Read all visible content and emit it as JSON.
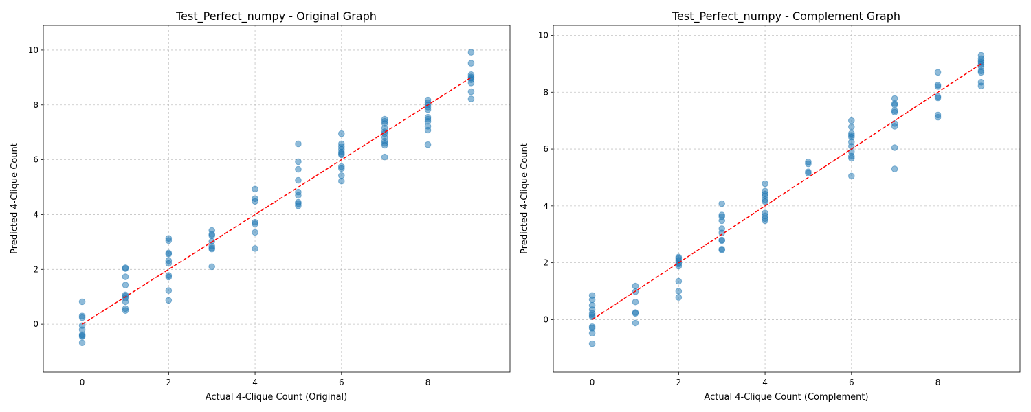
{
  "chart_data": [
    {
      "type": "scatter",
      "title": "Test_Perfect_numpy - Original Graph",
      "xlabel": "Actual 4-Clique Count (Original)",
      "ylabel": "Predicted 4-Clique Count",
      "xlim": [
        -0.9,
        9.9
      ],
      "ylim": [
        -1.75,
        10.9
      ],
      "xticks": [
        0,
        2,
        4,
        6,
        8
      ],
      "yticks": [
        0,
        2,
        4,
        6,
        8,
        10
      ],
      "grid": true,
      "colors": {
        "points": "#1f77b4",
        "reference_line": "#ff0000"
      },
      "reference_line": {
        "x": [
          0,
          9
        ],
        "y": [
          0,
          9
        ]
      },
      "series": [
        {
          "points": [
            [
              0,
              0.82
            ],
            [
              0,
              0.3
            ],
            [
              0,
              0.24
            ],
            [
              0,
              -0.05
            ],
            [
              0,
              -0.2
            ],
            [
              0,
              -0.38
            ],
            [
              0,
              -0.42
            ],
            [
              0,
              -0.45
            ],
            [
              0,
              -0.68
            ],
            [
              1,
              2.06
            ],
            [
              1,
              2.03
            ],
            [
              1,
              1.73
            ],
            [
              1,
              1.43
            ],
            [
              1,
              1.07
            ],
            [
              1,
              1.02
            ],
            [
              1,
              0.95
            ],
            [
              1,
              0.82
            ],
            [
              1,
              0.57
            ],
            [
              1,
              0.5
            ],
            [
              2,
              3.13
            ],
            [
              2,
              3.05
            ],
            [
              2,
              2.6
            ],
            [
              2,
              2.56
            ],
            [
              2,
              2.32
            ],
            [
              2,
              2.22
            ],
            [
              2,
              1.78
            ],
            [
              2,
              1.72
            ],
            [
              2,
              1.23
            ],
            [
              2,
              0.87
            ],
            [
              3,
              3.42
            ],
            [
              3,
              3.28
            ],
            [
              3,
              3.23
            ],
            [
              3,
              3.02
            ],
            [
              3,
              2.85
            ],
            [
              3,
              2.78
            ],
            [
              3,
              2.74
            ],
            [
              3,
              2.1
            ],
            [
              4,
              4.93
            ],
            [
              4,
              4.58
            ],
            [
              4,
              4.48
            ],
            [
              4,
              3.72
            ],
            [
              4,
              3.66
            ],
            [
              4,
              3.35
            ],
            [
              4,
              2.76
            ],
            [
              5,
              6.58
            ],
            [
              5,
              5.93
            ],
            [
              5,
              5.65
            ],
            [
              5,
              5.25
            ],
            [
              5,
              4.82
            ],
            [
              5,
              4.7
            ],
            [
              5,
              4.45
            ],
            [
              5,
              4.4
            ],
            [
              5,
              4.32
            ],
            [
              6,
              6.95
            ],
            [
              6,
              6.58
            ],
            [
              6,
              6.48
            ],
            [
              6,
              6.38
            ],
            [
              6,
              6.28
            ],
            [
              6,
              6.22
            ],
            [
              6,
              6.18
            ],
            [
              6,
              5.75
            ],
            [
              6,
              5.68
            ],
            [
              6,
              5.42
            ],
            [
              6,
              5.22
            ],
            [
              7,
              7.48
            ],
            [
              7,
              7.4
            ],
            [
              7,
              7.32
            ],
            [
              7,
              7.15
            ],
            [
              7,
              7.02
            ],
            [
              7,
              6.95
            ],
            [
              7,
              6.82
            ],
            [
              7,
              6.68
            ],
            [
              7,
              6.6
            ],
            [
              7,
              6.53
            ],
            [
              7,
              6.1
            ],
            [
              8,
              8.18
            ],
            [
              8,
              8.08
            ],
            [
              8,
              8.0
            ],
            [
              8,
              7.92
            ],
            [
              8,
              7.83
            ],
            [
              8,
              7.55
            ],
            [
              8,
              7.48
            ],
            [
              8,
              7.4
            ],
            [
              8,
              7.22
            ],
            [
              8,
              7.08
            ],
            [
              8,
              6.55
            ],
            [
              9,
              9.92
            ],
            [
              9,
              9.52
            ],
            [
              9,
              9.1
            ],
            [
              9,
              9.02
            ],
            [
              9,
              8.98
            ],
            [
              9,
              8.92
            ],
            [
              9,
              8.8
            ],
            [
              9,
              8.48
            ],
            [
              9,
              8.22
            ]
          ]
        }
      ]
    },
    {
      "type": "scatter",
      "title": "Test_Perfect_numpy - Complement Graph",
      "xlabel": "Actual 4-Clique Count (Complement)",
      "ylabel": "Predicted 4-Clique Count",
      "xlim": [
        -0.9,
        9.9
      ],
      "ylim": [
        -1.85,
        10.35
      ],
      "xticks": [
        0,
        2,
        4,
        6,
        8
      ],
      "yticks": [
        0,
        2,
        4,
        6,
        8,
        10
      ],
      "grid": true,
      "colors": {
        "points": "#1f77b4",
        "reference_line": "#ff0000"
      },
      "reference_line": {
        "x": [
          0,
          9
        ],
        "y": [
          0,
          9
        ]
      },
      "series": [
        {
          "points": [
            [
              0,
              0.85
            ],
            [
              0,
              0.7
            ],
            [
              0,
              0.5
            ],
            [
              0,
              0.35
            ],
            [
              0,
              0.22
            ],
            [
              0,
              0.15
            ],
            [
              0,
              0.1
            ],
            [
              0,
              -0.25
            ],
            [
              0,
              -0.3
            ],
            [
              0,
              -0.48
            ],
            [
              0,
              -0.85
            ],
            [
              1,
              1.18
            ],
            [
              1,
              0.98
            ],
            [
              1,
              0.62
            ],
            [
              1,
              0.25
            ],
            [
              1,
              0.22
            ],
            [
              1,
              -0.12
            ],
            [
              2,
              2.2
            ],
            [
              2,
              2.15
            ],
            [
              2,
              2.08
            ],
            [
              2,
              2.0
            ],
            [
              2,
              1.95
            ],
            [
              2,
              1.88
            ],
            [
              2,
              1.35
            ],
            [
              2,
              1.0
            ],
            [
              2,
              0.78
            ],
            [
              3,
              4.08
            ],
            [
              3,
              3.68
            ],
            [
              3,
              3.62
            ],
            [
              3,
              3.48
            ],
            [
              3,
              3.2
            ],
            [
              3,
              3.05
            ],
            [
              3,
              2.8
            ],
            [
              3,
              2.78
            ],
            [
              3,
              2.48
            ],
            [
              3,
              2.45
            ],
            [
              4,
              4.78
            ],
            [
              4,
              4.52
            ],
            [
              4,
              4.42
            ],
            [
              4,
              4.35
            ],
            [
              4,
              4.22
            ],
            [
              4,
              4.15
            ],
            [
              4,
              3.75
            ],
            [
              4,
              3.65
            ],
            [
              4,
              3.55
            ],
            [
              4,
              3.48
            ],
            [
              5,
              5.55
            ],
            [
              5,
              5.48
            ],
            [
              5,
              5.2
            ],
            [
              5,
              5.15
            ],
            [
              6,
              7.0
            ],
            [
              6,
              6.78
            ],
            [
              6,
              6.55
            ],
            [
              6,
              6.48
            ],
            [
              6,
              6.42
            ],
            [
              6,
              6.25
            ],
            [
              6,
              6.1
            ],
            [
              6,
              5.9
            ],
            [
              6,
              5.75
            ],
            [
              6,
              5.68
            ],
            [
              6,
              5.05
            ],
            [
              7,
              7.78
            ],
            [
              7,
              7.6
            ],
            [
              7,
              7.55
            ],
            [
              7,
              7.35
            ],
            [
              7,
              7.3
            ],
            [
              7,
              6.9
            ],
            [
              7,
              6.8
            ],
            [
              7,
              6.05
            ],
            [
              7,
              5.3
            ],
            [
              8,
              8.7
            ],
            [
              8,
              8.25
            ],
            [
              8,
              8.2
            ],
            [
              8,
              7.85
            ],
            [
              8,
              7.8
            ],
            [
              8,
              7.2
            ],
            [
              8,
              7.12
            ],
            [
              9,
              9.3
            ],
            [
              9,
              9.18
            ],
            [
              9,
              9.1
            ],
            [
              9,
              9.05
            ],
            [
              9,
              8.98
            ],
            [
              9,
              8.9
            ],
            [
              9,
              8.75
            ],
            [
              9,
              8.7
            ],
            [
              9,
              8.35
            ],
            [
              9,
              8.22
            ]
          ]
        }
      ]
    }
  ]
}
